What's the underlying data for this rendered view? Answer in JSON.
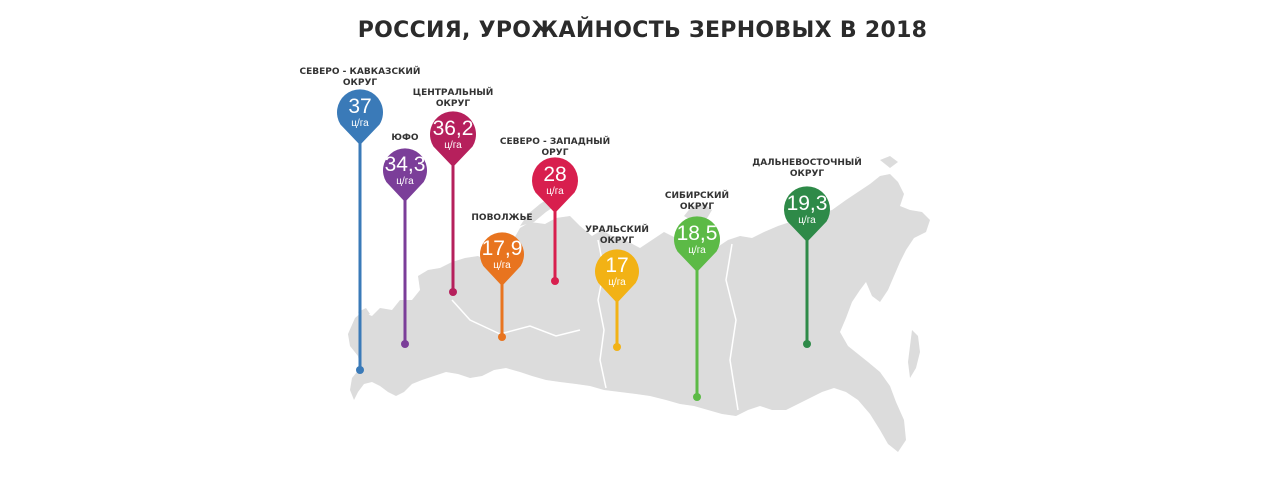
{
  "title": "РОССИЯ, УРОЖАЙНОСТЬ ЗЕРНОВЫХ В 2018",
  "map_color": "#dcdcdc",
  "unit": "ц/га",
  "regions": [
    {
      "label_lines": [
        "СЕВЕРО - КАВКАЗСКИЙ",
        "ОКРУГ"
      ],
      "value": "37",
      "color": "#3a7ab8"
    },
    {
      "label_lines": [
        "ЮФО"
      ],
      "value": "34,3",
      "color": "#7b3e99"
    },
    {
      "label_lines": [
        "ЦЕНТРАЛЬНЫЙ",
        "ОКРУГ"
      ],
      "value": "36,2",
      "color": "#b6205c"
    },
    {
      "label_lines": [
        "СЕВЕРО - ЗАПАДНЫЙ",
        "ОРУГ"
      ],
      "value": "28",
      "color": "#d81f4e"
    },
    {
      "label_lines": [
        "ПОВОЛЖЬЕ"
      ],
      "value": "17,9",
      "color": "#e8741f"
    },
    {
      "label_lines": [
        "УРАЛЬСКИЙ",
        "ОКРУГ"
      ],
      "value": "17",
      "color": "#f2b215"
    },
    {
      "label_lines": [
        "СИБИРСКИЙ",
        "ОКРУГ"
      ],
      "value": "18,5",
      "color": "#5cba46"
    },
    {
      "label_lines": [
        "ДАЛЬНЕВОСТОЧНЫЙ",
        "ОКРУГ"
      ],
      "value": "19,3",
      "color": "#2e8a48"
    }
  ]
}
